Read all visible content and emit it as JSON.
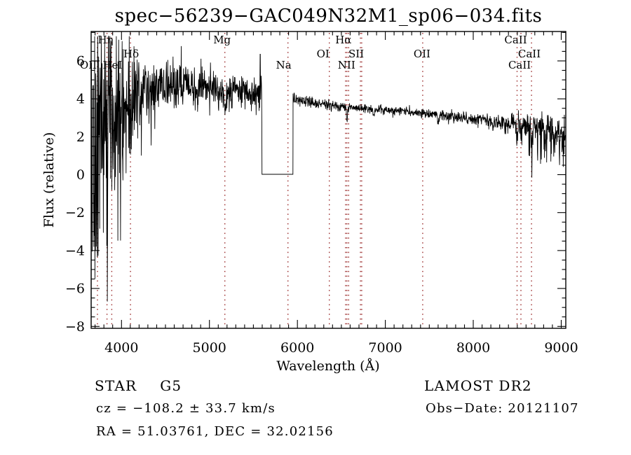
{
  "title": "spec−56239−GAC049N32M1_sp06−034.fits",
  "annotations": {
    "object_class": "STAR",
    "subclass": "G5",
    "survey": "LAMOST DR2",
    "cz": "cz = −108.2 ± 33.7 km/s",
    "obs_date": "Obs−Date: 20121107",
    "radec": "RA =  51.03761, DEC =  32.02156"
  },
  "chart_data": {
    "type": "line",
    "title": "spec−56239−GAC049N32M1_sp06−034.fits",
    "xlabel": "Wavelength (Å)",
    "ylabel": "Flux (relative)",
    "xlim": [
      3655,
      9052
    ],
    "ylim": [
      -8.1,
      7.55
    ],
    "xticks": [
      4000,
      5000,
      6000,
      7000,
      8000,
      9000
    ],
    "yticks": [
      -8,
      -6,
      -4,
      -2,
      0,
      2,
      4,
      6
    ],
    "x_minor_step": 100,
    "y_minor_step": 0.5,
    "grid": false,
    "background": "#ffffff",
    "line_color": "#000000",
    "marker_color": "#9b2b2b",
    "spectral_lines": [
      {
        "label": "OII",
        "wavelength": 3727,
        "label_row": 3,
        "label_dx": -13
      },
      {
        "label": "Hη",
        "wavelength": 3835,
        "label_row": 1,
        "label_dx": -2
      },
      {
        "label": "HeI",
        "wavelength": 3889,
        "label_row": 3,
        "label_dx": 1
      },
      {
        "label": "Hδ",
        "wavelength": 4102,
        "label_row": 2,
        "label_dx": 1
      },
      {
        "label": "Mg",
        "wavelength": 5175,
        "label_row": 1,
        "label_dx": -4
      },
      {
        "label": "Na",
        "wavelength": 5893,
        "label_row": 3,
        "label_dx": -6
      },
      {
        "label": "OI",
        "wavelength": 6363,
        "label_row": 2,
        "label_dx": -9
      },
      {
        "label": "",
        "wavelength": 6548,
        "label_row": 0,
        "label_dx": 0
      },
      {
        "label": "Hα",
        "wavelength": 6563,
        "label_row": 1,
        "label_dx": -5
      },
      {
        "label": "NII",
        "wavelength": 6583,
        "label_row": 3,
        "label_dx": -3
      },
      {
        "label": "SII",
        "wavelength": 6717,
        "label_row": 2,
        "label_dx": -6
      },
      {
        "label": "",
        "wavelength": 6731,
        "label_row": 0,
        "label_dx": 0
      },
      {
        "label": "OII",
        "wavelength": 7425,
        "label_row": 2,
        "label_dx": -1
      },
      {
        "label": "CaII",
        "wavelength": 8498,
        "label_row": 1,
        "label_dx": -2
      },
      {
        "label": "CaII",
        "wavelength": 8542,
        "label_row": 2,
        "label_dx": 12
      },
      {
        "label": "CaII",
        "wavelength": 8662,
        "label_row": 3,
        "label_dx": -17
      }
    ],
    "spectrum": {
      "seed": 20121107,
      "step": 3,
      "continuum": [
        [
          3655,
          1.5
        ],
        [
          3700,
          2.0
        ],
        [
          3780,
          2.6
        ],
        [
          3860,
          3.0
        ],
        [
          3950,
          3.4
        ],
        [
          4050,
          3.9
        ],
        [
          4200,
          4.3
        ],
        [
          4350,
          4.55
        ],
        [
          4500,
          4.65
        ],
        [
          4700,
          4.7
        ],
        [
          4900,
          4.6
        ],
        [
          5100,
          4.45
        ],
        [
          5300,
          4.35
        ],
        [
          5450,
          4.3
        ],
        [
          5596,
          4.4
        ],
        [
          5951,
          3.95
        ],
        [
          6100,
          3.85
        ],
        [
          6300,
          3.7
        ],
        [
          6600,
          3.55
        ],
        [
          6900,
          3.45
        ],
        [
          7200,
          3.35
        ],
        [
          7500,
          3.2
        ],
        [
          7800,
          3.05
        ],
        [
          8100,
          2.85
        ],
        [
          8400,
          2.7
        ],
        [
          8700,
          2.5
        ],
        [
          8900,
          2.3
        ],
        [
          9052,
          2.05
        ]
      ],
      "noise": [
        [
          3655,
          4.2
        ],
        [
          3720,
          3.8
        ],
        [
          3800,
          3.2
        ],
        [
          3900,
          2.6
        ],
        [
          4000,
          1.9
        ],
        [
          4100,
          1.4
        ],
        [
          4250,
          1.0
        ],
        [
          4450,
          0.75
        ],
        [
          4700,
          0.6
        ],
        [
          5000,
          0.5
        ],
        [
          5300,
          0.45
        ],
        [
          5596,
          0.4
        ],
        [
          5951,
          0.15
        ],
        [
          6300,
          0.13
        ],
        [
          7000,
          0.12
        ],
        [
          7600,
          0.13
        ],
        [
          8100,
          0.18
        ],
        [
          8400,
          0.25
        ],
        [
          8700,
          0.38
        ],
        [
          9052,
          0.5
        ]
      ],
      "gap": {
        "start": 5596,
        "end": 5951,
        "value": 0.02,
        "left_edge": 2.3,
        "right_edge": 1.55
      },
      "dips": [
        {
          "center": 4102,
          "width": 10,
          "depth": 0.5
        },
        {
          "center": 4861,
          "width": 10,
          "depth": 0.5
        },
        {
          "center": 5175,
          "width": 22,
          "depth": 0.65
        },
        {
          "center": 6563,
          "width": 8,
          "depth": 0.6
        },
        {
          "center": 6867,
          "width": 12,
          "depth": 0.3
        },
        {
          "center": 7607,
          "width": 14,
          "depth": 0.35
        },
        {
          "center": 8228,
          "width": 10,
          "depth": 0.25
        },
        {
          "center": 8498,
          "width": 9,
          "depth": 0.6
        },
        {
          "center": 8542,
          "width": 9,
          "depth": 0.7
        },
        {
          "center": 8662,
          "width": 9,
          "depth": 0.6
        }
      ],
      "sky_spike": {
        "wavelength": 5577,
        "flux": 6.35
      },
      "blue_spikes": {
        "max_wavelength": 4120,
        "probability": 0.22,
        "max_depth": 9
      },
      "red_spikes": {
        "min_wavelength": 8600,
        "probability": 0.18,
        "max_depth": 1.7
      },
      "clip": [
        -8.05,
        7.3
      ]
    }
  }
}
